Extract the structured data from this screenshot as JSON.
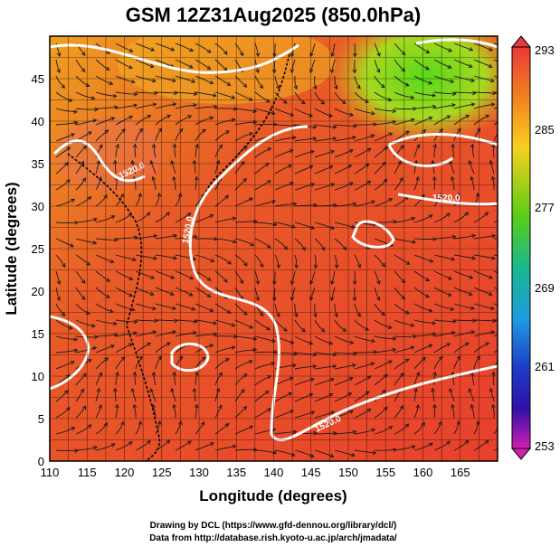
{
  "title": "GSM 12Z31Aug2025 (850.0hPa)",
  "xlabel": "Longitude (degrees)",
  "ylabel": "Latitude  (degrees)",
  "credits": [
    "Drawing by DCL (https://www.gfd-dennou.org/library/dcl/)",
    "Data from http://database.rish.kyoto-u.ac.jp/arch/jmadata/"
  ],
  "x_ticks": [
    "110",
    "115",
    "120",
    "125",
    "130",
    "135",
    "140",
    "145",
    "150",
    "155",
    "160",
    "165"
  ],
  "y_ticks": [
    "0",
    "5",
    "10",
    "15",
    "20",
    "25",
    "30",
    "35",
    "40",
    "45"
  ],
  "colorbar": {
    "ticks": [
      "293",
      "285",
      "277",
      "269",
      "261",
      "253"
    ],
    "colors": [
      "#e83a3a",
      "#f07e1e",
      "#f8d020",
      "#5ccd14",
      "#18b890",
      "#1e9ae0",
      "#1c3cc8",
      "#3010a8",
      "#d020b0"
    ]
  },
  "contour_labels": [
    "1520.0",
    "1520.0",
    "1520.0",
    "1520.0",
    "1520.0",
    "1520.0"
  ],
  "chart_data": {
    "type": "heatmap",
    "title": "GSM 12Z31Aug2025 (850.0hPa)",
    "xlabel": "Longitude (degrees)",
    "ylabel": "Latitude  (degrees)",
    "xlim": [
      110,
      170
    ],
    "ylim": [
      0,
      50
    ],
    "x_ticks": [
      110,
      115,
      120,
      125,
      130,
      135,
      140,
      145,
      150,
      155,
      160,
      165
    ],
    "y_ticks": [
      0,
      5,
      10,
      15,
      20,
      25,
      30,
      35,
      40,
      45
    ],
    "colorbar_range": [
      253,
      293
    ],
    "colorbar_ticks": [
      293,
      285,
      277,
      269,
      261,
      253
    ],
    "contour_value": 1520.0,
    "overlay": "streamlines",
    "grid": true
  }
}
